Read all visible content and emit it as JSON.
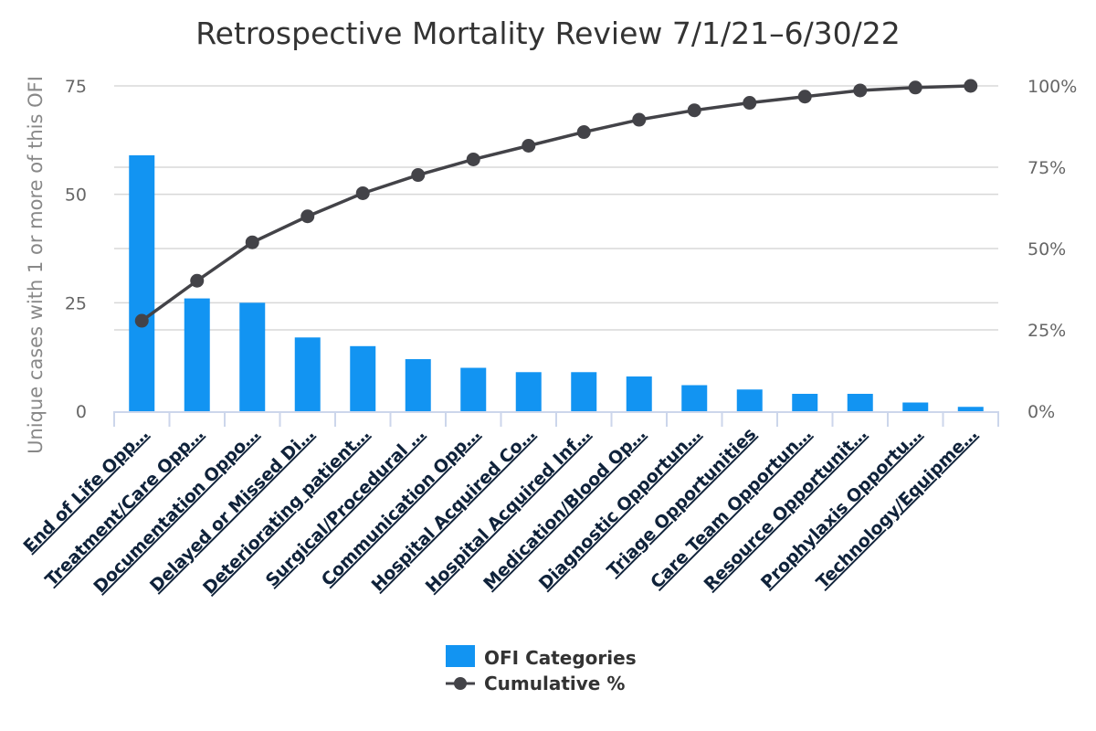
{
  "chart_data": {
    "type": "bar",
    "title": "Retrospective Mortality Review 7/1/21–6/30/22",
    "ylabel": "Unique cases with 1 or more of this OFI",
    "y2label": "",
    "ylim": [
      0,
      75
    ],
    "y2lim": [
      0,
      100
    ],
    "yticks": [
      "0",
      "25",
      "50",
      "75"
    ],
    "y2ticks": [
      "0%",
      "25%",
      "50%",
      "75%",
      "100%"
    ],
    "grid": true,
    "legend_position": "bottom-center",
    "categories": [
      "End of Life Opp…",
      "Treatment/Care Opp…",
      "Documentation Oppo…",
      "Delayed or Missed Di…",
      "Deteriorating patient…",
      "Surgical/Procedural …",
      "Communication Opp…",
      "Hospital Acquired Co…",
      "Hospital Acquired Inf…",
      "Medication/Blood Op…",
      "Diagnostic Opportun…",
      "Triage Opportunities",
      "Care Team Opportun…",
      "Resource Opportunit…",
      "Prophylaxis Opportu…",
      "Technology/Equipme…"
    ],
    "series": [
      {
        "name": "OFI Categories",
        "type": "bar",
        "color": "#1294f2",
        "axis": "left",
        "values": [
          59,
          26,
          25,
          17,
          15,
          12,
          10,
          9,
          9,
          8,
          6,
          5,
          4,
          4,
          2,
          1
        ]
      },
      {
        "name": "Cumulative %",
        "type": "line",
        "color": "#434348",
        "axis": "right",
        "values": [
          27.8,
          40.1,
          51.9,
          59.9,
          67.0,
          72.6,
          77.4,
          81.6,
          85.8,
          89.6,
          92.5,
          94.8,
          96.7,
          98.6,
          99.5,
          100
        ]
      }
    ]
  }
}
